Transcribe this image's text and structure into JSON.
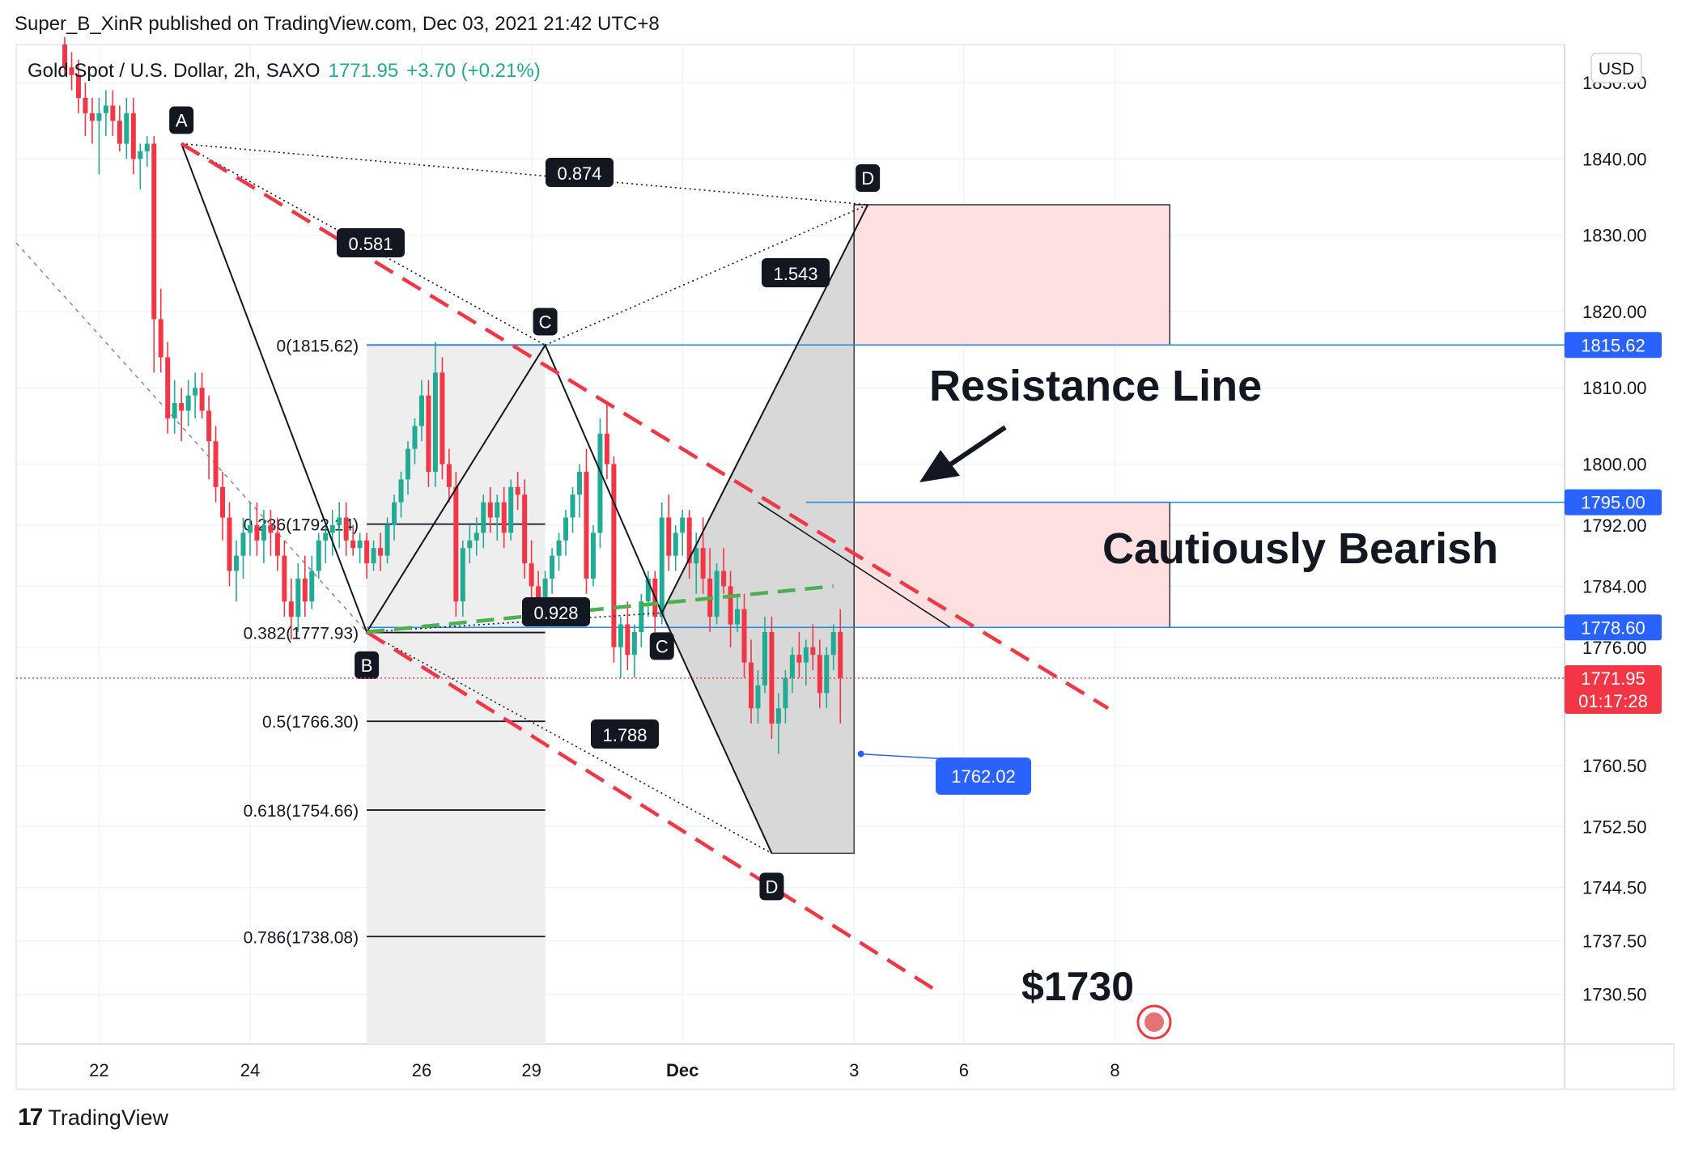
{
  "header": {
    "publisher_line": "Super_B_XinR published on TradingView.com, Dec 03, 2021 21:42 UTC+8"
  },
  "symbol": {
    "name": "Gold Spot / U.S. Dollar, 2h, SAXO",
    "last": "1771.95",
    "change": "+3.70 (+0.21%)"
  },
  "currency": "USD",
  "brand": {
    "logo": "17",
    "name": "TradingView"
  },
  "colors": {
    "up": "#22ab94",
    "down": "#f23645",
    "trend": "#f23645",
    "green_line": "#4caf50",
    "zone": "#ffe0e0",
    "zone_border": "#333333",
    "hline": "#2962ff",
    "tag_blue": "#2962ff"
  },
  "chart_data": {
    "type": "candlestick",
    "timeframe": "2h",
    "ylim": [
      1724,
      1855
    ],
    "y_ticks": [
      {
        "value": 1850,
        "label": "1850.00"
      },
      {
        "value": 1840,
        "label": "1840.00"
      },
      {
        "value": 1830,
        "label": "1830.00"
      },
      {
        "value": 1820,
        "label": "1820.00"
      },
      {
        "value": 1810,
        "label": "1810.00"
      },
      {
        "value": 1800,
        "label": "1800.00"
      },
      {
        "value": 1792,
        "label": "1792.00"
      },
      {
        "value": 1784,
        "label": "1784.00"
      },
      {
        "value": 1776,
        "label": "1776.00"
      },
      {
        "value": 1760.5,
        "label": "1760.50"
      },
      {
        "value": 1752.5,
        "label": "1752.50"
      },
      {
        "value": 1744.5,
        "label": "1744.50"
      },
      {
        "value": 1737.5,
        "label": "1737.50"
      },
      {
        "value": 1730.5,
        "label": "1730.50"
      }
    ],
    "x_ticks": [
      {
        "i": 5,
        "label": "22"
      },
      {
        "i": 27,
        "label": "24"
      },
      {
        "i": 52,
        "label": "26"
      },
      {
        "i": 68,
        "label": "29"
      },
      {
        "i": 90,
        "label": "Dec"
      },
      {
        "i": 115,
        "label": "3"
      },
      {
        "i": 131,
        "label": "6"
      },
      {
        "i": 153,
        "label": "8"
      }
    ],
    "price_tags": [
      {
        "value": 1815.62,
        "label": "1815.62",
        "color": "#2962ff"
      },
      {
        "value": 1795.0,
        "label": "1795.00",
        "color": "#2962ff"
      },
      {
        "value": 1778.6,
        "label": "1778.60",
        "color": "#2962ff"
      },
      {
        "value": 1771.95,
        "label": "1771.95",
        "sub": "01:17:28",
        "color": "#f23645"
      }
    ],
    "ohlc": [
      [
        1855,
        1856,
        1851,
        1852
      ],
      [
        1852,
        1854,
        1849,
        1851
      ],
      [
        1851,
        1853,
        1846,
        1848
      ],
      [
        1848,
        1850,
        1843,
        1846
      ],
      [
        1846,
        1848,
        1842,
        1845
      ],
      [
        1845,
        1848,
        1838,
        1846
      ],
      [
        1846,
        1849,
        1843,
        1847
      ],
      [
        1847,
        1849,
        1843,
        1845
      ],
      [
        1845,
        1847,
        1841,
        1842
      ],
      [
        1842,
        1848,
        1840,
        1846
      ],
      [
        1846,
        1848,
        1838,
        1840
      ],
      [
        1840,
        1842,
        1836,
        1841
      ],
      [
        1841,
        1843,
        1839,
        1842
      ],
      [
        1842,
        1843,
        1812,
        1819
      ],
      [
        1819,
        1823,
        1812,
        1814
      ],
      [
        1814,
        1816,
        1804,
        1806
      ],
      [
        1806,
        1811,
        1804,
        1808
      ],
      [
        1808,
        1810,
        1803,
        1807
      ],
      [
        1807,
        1811,
        1805,
        1809
      ],
      [
        1809,
        1812,
        1806,
        1810
      ],
      [
        1810,
        1812,
        1806,
        1807
      ],
      [
        1807,
        1809,
        1798,
        1803
      ],
      [
        1803,
        1805,
        1795,
        1797
      ],
      [
        1797,
        1799,
        1790,
        1793
      ],
      [
        1793,
        1795,
        1784,
        1786
      ],
      [
        1786,
        1790,
        1782,
        1788
      ],
      [
        1788,
        1793,
        1785,
        1791
      ],
      [
        1791,
        1795,
        1788,
        1792
      ],
      [
        1792,
        1795,
        1788,
        1790
      ],
      [
        1790,
        1794,
        1787,
        1792
      ],
      [
        1792,
        1794,
        1788,
        1791
      ],
      [
        1791,
        1793,
        1786,
        1788
      ],
      [
        1788,
        1790,
        1780,
        1782
      ],
      [
        1782,
        1785,
        1777,
        1780
      ],
      [
        1780,
        1787,
        1778,
        1785
      ],
      [
        1785,
        1788,
        1780,
        1782
      ],
      [
        1782,
        1788,
        1781,
        1786
      ],
      [
        1786,
        1791,
        1785,
        1790
      ],
      [
        1790,
        1792,
        1787,
        1791
      ],
      [
        1791,
        1794,
        1788,
        1792
      ],
      [
        1792,
        1795,
        1789,
        1793
      ],
      [
        1793,
        1795,
        1788,
        1790
      ],
      [
        1790,
        1792,
        1788,
        1789
      ],
      [
        1789,
        1791,
        1787,
        1790
      ],
      [
        1790,
        1791,
        1785,
        1787
      ],
      [
        1787,
        1790,
        1786,
        1789
      ],
      [
        1789,
        1791,
        1786,
        1788
      ],
      [
        1788,
        1793,
        1787,
        1792
      ],
      [
        1792,
        1796,
        1790,
        1795
      ],
      [
        1795,
        1799,
        1793,
        1798
      ],
      [
        1798,
        1803,
        1796,
        1802
      ],
      [
        1802,
        1806,
        1800,
        1805
      ],
      [
        1805,
        1811,
        1803,
        1809
      ],
      [
        1809,
        1811,
        1797,
        1799
      ],
      [
        1799,
        1816,
        1797,
        1812
      ],
      [
        1812,
        1814,
        1798,
        1800
      ],
      [
        1800,
        1802,
        1795,
        1797
      ],
      [
        1797,
        1799,
        1780,
        1782
      ],
      [
        1782,
        1790,
        1780,
        1789
      ],
      [
        1789,
        1792,
        1787,
        1790
      ],
      [
        1790,
        1793,
        1788,
        1791
      ],
      [
        1791,
        1796,
        1789,
        1795
      ],
      [
        1795,
        1797,
        1791,
        1793
      ],
      [
        1793,
        1796,
        1790,
        1795
      ],
      [
        1795,
        1797,
        1789,
        1791
      ],
      [
        1791,
        1798,
        1790,
        1797
      ],
      [
        1797,
        1799,
        1794,
        1796
      ],
      [
        1796,
        1798,
        1785,
        1787
      ],
      [
        1787,
        1790,
        1782,
        1784
      ],
      [
        1784,
        1786,
        1779,
        1781
      ],
      [
        1781,
        1786,
        1780,
        1785
      ],
      [
        1785,
        1789,
        1783,
        1788
      ],
      [
        1788,
        1791,
        1786,
        1790
      ],
      [
        1790,
        1794,
        1788,
        1793
      ],
      [
        1793,
        1797,
        1791,
        1796
      ],
      [
        1796,
        1800,
        1793,
        1799
      ],
      [
        1799,
        1802,
        1783,
        1785
      ],
      [
        1785,
        1792,
        1784,
        1791
      ],
      [
        1791,
        1806,
        1789,
        1804
      ],
      [
        1804,
        1808,
        1798,
        1800
      ],
      [
        1800,
        1801,
        1774,
        1776
      ],
      [
        1776,
        1780,
        1772,
        1779
      ],
      [
        1779,
        1782,
        1773,
        1775
      ],
      [
        1775,
        1779,
        1772,
        1778
      ],
      [
        1778,
        1783,
        1776,
        1782
      ],
      [
        1782,
        1786,
        1780,
        1785
      ],
      [
        1785,
        1786,
        1778,
        1780
      ],
      [
        1780,
        1795,
        1779,
        1793
      ],
      [
        1793,
        1796,
        1786,
        1788
      ],
      [
        1788,
        1792,
        1786,
        1791
      ],
      [
        1791,
        1794,
        1788,
        1793
      ],
      [
        1793,
        1794,
        1785,
        1787
      ],
      [
        1787,
        1791,
        1783,
        1789
      ],
      [
        1789,
        1793,
        1783,
        1785
      ],
      [
        1785,
        1789,
        1778,
        1780
      ],
      [
        1780,
        1787,
        1779,
        1786
      ],
      [
        1786,
        1789,
        1783,
        1784
      ],
      [
        1784,
        1786,
        1776,
        1779
      ],
      [
        1779,
        1783,
        1778,
        1781
      ],
      [
        1781,
        1783,
        1772,
        1774
      ],
      [
        1774,
        1777,
        1766,
        1768
      ],
      [
        1768,
        1773,
        1766,
        1771
      ],
      [
        1771,
        1780,
        1770,
        1778
      ],
      [
        1778,
        1780,
        1764,
        1766
      ],
      [
        1766,
        1770,
        1762,
        1768
      ],
      [
        1768,
        1773,
        1766,
        1772
      ],
      [
        1772,
        1776,
        1770,
        1775
      ],
      [
        1775,
        1778,
        1772,
        1774
      ],
      [
        1774,
        1777,
        1771,
        1776
      ],
      [
        1776,
        1779,
        1773,
        1775
      ],
      [
        1775,
        1777,
        1768,
        1770
      ],
      [
        1770,
        1776,
        1768,
        1775
      ],
      [
        1775,
        1779,
        1773,
        1778
      ],
      [
        1778,
        1781,
        1766,
        1772
      ]
    ],
    "fib_levels": [
      {
        "value": 1815.62,
        "label": "0(1815.62)"
      },
      {
        "value": 1792.14,
        "label": "0.236(1792.14)"
      },
      {
        "value": 1777.93,
        "label": "0.382(1777.93)"
      },
      {
        "value": 1766.3,
        "label": "0.5(1766.30)"
      },
      {
        "value": 1754.66,
        "label": "0.618(1754.66)"
      },
      {
        "value": 1738.08,
        "label": "0.786(1738.08)"
      }
    ],
    "pattern_points": [
      {
        "label": "A",
        "i": 17,
        "value": 1842
      },
      {
        "label": "B",
        "i": 44,
        "value": 1778
      },
      {
        "label": "C",
        "i": 70,
        "value": 1815.6
      },
      {
        "label": "C",
        "i": 87,
        "value": 1780.5
      },
      {
        "label": "D",
        "i": 117,
        "value": 1834
      },
      {
        "label": "D",
        "i": 103,
        "value": 1749
      }
    ],
    "ratio_labels": [
      "0.874",
      "0.581",
      "1.543",
      "0.928",
      "1.788"
    ],
    "zones": [
      {
        "from": 1815.62,
        "to": 1834
      },
      {
        "from": 1778.6,
        "to": 1795
      }
    ],
    "annotations": {
      "resistance": "Resistance Line",
      "bias": "Cautiously Bearish",
      "target": "$1730",
      "low_tag": "1762.02"
    }
  }
}
